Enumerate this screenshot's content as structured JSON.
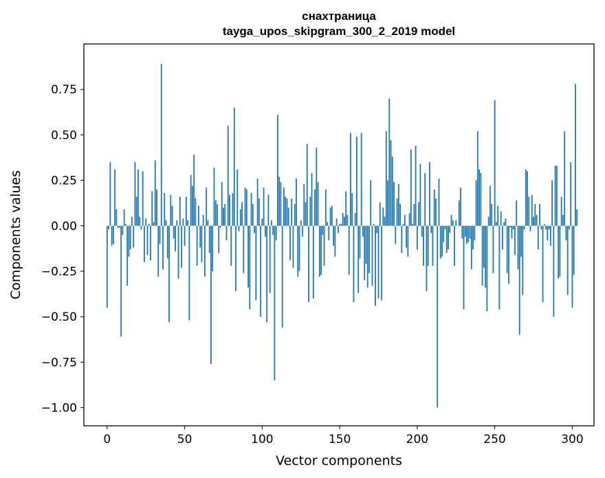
{
  "chart_data": {
    "type": "bar",
    "title": [
      "снахтраница",
      "tayga_upos_skipgram_300_2_2019 model"
    ],
    "xlabel": "Vector components",
    "ylabel": "Components values",
    "xlim": [
      -15,
      314
    ],
    "ylim": [
      -1.1,
      1.0
    ],
    "xticks": [
      0,
      50,
      100,
      150,
      200,
      250,
      300
    ],
    "xtick_labels": [
      "0",
      "50",
      "100",
      "150",
      "200",
      "250",
      "300"
    ],
    "yticks": [
      -1.0,
      -0.75,
      -0.5,
      -0.25,
      0.0,
      0.25,
      0.5,
      0.75
    ],
    "ytick_labels": [
      "−1.00",
      "−0.75",
      "−0.50",
      "−0.25",
      "0.00",
      "0.25",
      "0.50",
      "0.75"
    ],
    "grid": false,
    "bar_color": "#1f77b4",
    "x_start": 0,
    "values": [
      -0.45,
      -0.02,
      0.35,
      -0.11,
      -0.1,
      0.31,
      0.09,
      -0.01,
      -0.01,
      -0.61,
      -0.05,
      0.09,
      0.01,
      -0.33,
      -0.17,
      -0.13,
      0.05,
      -0.12,
      0.35,
      0.16,
      0.31,
      0.05,
      -0.02,
      0.3,
      -0.2,
      0.04,
      -0.16,
      0.01,
      -0.19,
      0.19,
      0.02,
      0.36,
      0.2,
      -0.28,
      -0.1,
      0.89,
      -0.24,
      0.18,
      0.03,
      -0.18,
      -0.53,
      0.17,
      0.11,
      -0.07,
      -0.14,
      0.03,
      -0.29,
      0.16,
      -0.23,
      0.04,
      -0.11,
      0.16,
      0.03,
      -0.52,
      0.28,
      0.22,
      0.39,
      0.15,
      -0.22,
      0.11,
      -0.12,
      -0.2,
      0.06,
      -0.28,
      0.21,
      0.03,
      -0.15,
      -0.76,
      -0.25,
      0.32,
      0.14,
      0.12,
      -0.15,
      -0.01,
      0.24,
      0.1,
      0.12,
      -0.08,
      0.55,
      0.17,
      -0.22,
      0.18,
      0.65,
      -0.36,
      0.31,
      -0.03,
      0.09,
      0.13,
      -0.26,
      0.21,
      0.2,
      -0.34,
      -0.46,
      0.18,
      0.12,
      -0.04,
      -0.41,
      0.26,
      0.15,
      -0.5,
      0.04,
      0.21,
      -0.06,
      -0.53,
      0.17,
      -0.37,
      0.03,
      -0.05,
      -0.85,
      -0.08,
      0.61,
      0.27,
      0.24,
      -0.56,
      0.21,
      0.16,
      0.15,
      0.1,
      -0.19,
      0.15,
      -0.23,
      0.12,
      0.26,
      -0.28,
      -0.25,
      0.03,
      -0.06,
      0.23,
      0.13,
      0.45,
      -0.42,
      0.16,
      0.29,
      -0.4,
      0.2,
      0.43,
      0.24,
      -0.28,
      -0.27,
      -0.05,
      -0.22,
      0.2,
      0.02,
      -0.08,
      0.1,
      0.11,
      -0.11,
      -0.17,
      0.04,
      -0.04,
      0.01,
      0.01,
      0.07,
      0.05,
      0.19,
      0.06,
      -0.27,
      0.51,
      0.18,
      -0.42,
      0.07,
      0.49,
      -0.37,
      -0.18,
      0.51,
      -0.06,
      -0.3,
      -0.21,
      -0.34,
      -0.26,
      0.25,
      -0.33,
      0.01,
      -0.44,
      -0.04,
      -0.4,
      0.13,
      -0.41,
      0.1,
      0.05,
      0.52,
      0.25,
      0.7,
      0.47,
      0.38,
      0.24,
      -0.1,
      0.15,
      0.23,
      0.12,
      -0.15,
      0.01,
      0.06,
      -0.12,
      -0.17,
      0.07,
      0.42,
      0.01,
      0.12,
      0.44,
      -0.13,
      0.13,
      0.34,
      -0.06,
      -0.22,
      0.29,
      -0.36,
      -0.22,
      0.35,
      -0.04,
      -0.22,
      0.2,
      0.15,
      -1.0,
      0.26,
      -0.18,
      -0.17,
      -0.09,
      -0.02,
      -0.15,
      -0.13,
      -0.04,
      0.06,
      0.03,
      -0.22,
      0.03,
      0.0,
      0.14,
      0.21,
      -0.07,
      -0.46,
      -0.06,
      -0.1,
      -0.09,
      -0.07,
      -0.24,
      -0.13,
      -0.08,
      0.25,
      0.52,
      0.31,
      0.29,
      -0.33,
      -0.23,
      -0.34,
      -0.47,
      0.05,
      0.22,
      0.12,
      -0.26,
      0.69,
      0.02,
      0.11,
      -0.46,
      0.08,
      -0.13,
      0.02,
      0.04,
      -0.26,
      -0.32,
      -0.01,
      -0.07,
      -0.02,
      -0.16,
      0.14,
      -0.24,
      -0.6,
      -0.17,
      -0.38,
      -0.02,
      0.31,
      0.3,
      0.16,
      -0.03,
      0.17,
      0.05,
      0.12,
      0.06,
      -0.13,
      0.12,
      -0.02,
      -0.42,
      0.01,
      -0.02,
      -0.08,
      -0.02,
      -0.11,
      0.25,
      -0.5,
      0.33,
      0.33,
      -0.29,
      -0.28,
      0.16,
      0.06,
      0.52,
      -0.08,
      -0.38,
      -0.02,
      0.35,
      -0.45,
      -0.27,
      0.78,
      0.09
    ]
  }
}
